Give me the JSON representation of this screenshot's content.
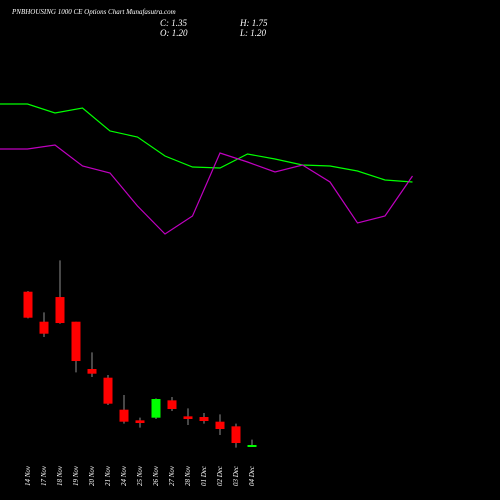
{
  "chart_data": [
    {
      "type": "candlestick",
      "title": "PNBHOUSING 1000 CE Options Chart Munafasutra.com",
      "info": {
        "close": "C: 1.35",
        "high": "H: 1.75",
        "open": "O: 1.20",
        "low": "L: 1.20"
      },
      "categories": [
        "14 Nov",
        "17 Nov",
        "18 Nov",
        "19 Nov",
        "20 Nov",
        "21 Nov",
        "24 Nov",
        "25 Nov",
        "26 Nov",
        "27 Nov",
        "28 Nov",
        "01 Dec",
        "02 Dec",
        "03 Dec",
        "04 Dec"
      ],
      "open": [
        12.85,
        10.6,
        12.45,
        10.6,
        7.05,
        6.4,
        4.0,
        3.2,
        3.4,
        4.7,
        3.5,
        3.45,
        3.1,
        2.75,
        1.2
      ],
      "close": [
        10.9,
        9.7,
        10.5,
        7.65,
        6.7,
        4.45,
        3.1,
        3.0,
        4.8,
        4.05,
        3.3,
        3.15,
        2.55,
        1.5,
        1.35
      ],
      "high": [
        12.9,
        11.3,
        15.2,
        10.6,
        8.3,
        6.6,
        5.1,
        3.4,
        4.85,
        4.95,
        4.1,
        3.75,
        3.65,
        2.95,
        1.75
      ],
      "low": [
        10.85,
        9.45,
        10.45,
        6.8,
        6.45,
        4.35,
        2.95,
        2.65,
        3.3,
        3.9,
        2.85,
        2.95,
        2.1,
        1.15,
        1.2
      ],
      "up_color": "#00ff00",
      "down_color": "#ff0000",
      "ylim": [
        0,
        20
      ]
    },
    {
      "type": "line",
      "series": [
        {
          "color": "#00ff00",
          "values": [
            19.6,
            19.6,
            18.7,
            19.2,
            16.9,
            16.3,
            14.4,
            13.3,
            13.2,
            14.6,
            14.1,
            13.5,
            13.4,
            12.9,
            12.0,
            11.8
          ]
        },
        {
          "color": "#c000c0",
          "values": [
            15.1,
            15.1,
            15.5,
            13.4,
            12.7,
            9.4,
            6.6,
            8.4,
            14.7,
            13.8,
            12.8,
            13.5,
            11.8,
            7.7,
            8.4,
            12.4
          ]
        }
      ],
      "ylim": [
        0,
        25
      ]
    }
  ]
}
